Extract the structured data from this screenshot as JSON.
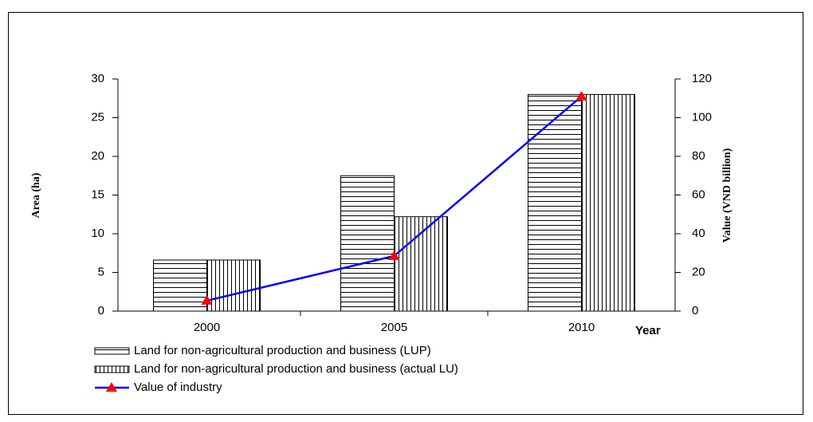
{
  "chart_data": {
    "type": "bar",
    "y_label": "Area (ha)",
    "y2_label": "Value (VND billion)",
    "x_label": "Year",
    "categories": [
      "2000",
      "2005",
      "2010"
    ],
    "series": [
      {
        "name": "Land for non-agricultural production and business (LUP)",
        "type": "bar",
        "pattern": "horizontal",
        "color": "#000000",
        "values": [
          6.6,
          17.5,
          28
        ]
      },
      {
        "name": "Land for non-agricultural production and business (actual LU)",
        "type": "bar",
        "pattern": "vertical",
        "color": "#000000",
        "values": [
          6.6,
          12.2,
          28
        ]
      },
      {
        "name": "Value of industry",
        "type": "line",
        "axis": "y2",
        "color": "#0000ff",
        "marker_color": "#ff0000",
        "values": [
          5.4,
          28.5,
          111
        ]
      }
    ],
    "ylim": [
      0,
      30
    ],
    "yticks": [
      0,
      5,
      10,
      15,
      20,
      25,
      30
    ],
    "y2lim": [
      0,
      120
    ],
    "y2ticks": [
      0,
      20,
      40,
      60,
      80,
      100,
      120
    ]
  }
}
